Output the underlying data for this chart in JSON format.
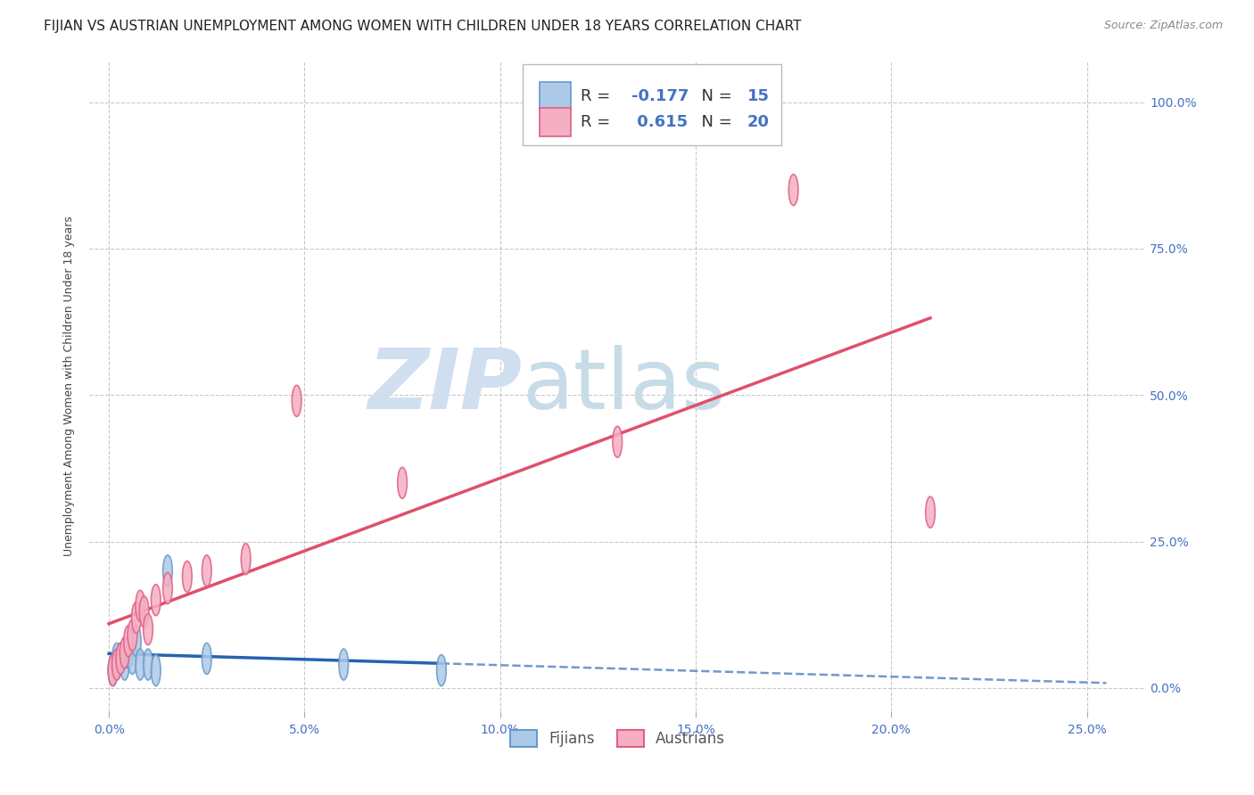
{
  "title": "FIJIAN VS AUSTRIAN UNEMPLOYMENT AMONG WOMEN WITH CHILDREN UNDER 18 YEARS CORRELATION CHART",
  "source": "Source: ZipAtlas.com",
  "ylabel": "Unemployment Among Women with Children Under 18 years",
  "fijians_x": [
    0.001,
    0.002,
    0.002,
    0.003,
    0.004,
    0.005,
    0.006,
    0.007,
    0.008,
    0.01,
    0.012,
    0.015,
    0.025,
    0.06,
    0.085
  ],
  "fijians_y": [
    0.03,
    0.04,
    0.05,
    0.05,
    0.04,
    0.06,
    0.05,
    0.08,
    0.04,
    0.04,
    0.03,
    0.2,
    0.05,
    0.04,
    0.03
  ],
  "austrians_x": [
    0.001,
    0.002,
    0.003,
    0.004,
    0.005,
    0.006,
    0.007,
    0.008,
    0.009,
    0.01,
    0.012,
    0.015,
    0.02,
    0.025,
    0.035,
    0.048,
    0.075,
    0.13,
    0.175,
    0.21
  ],
  "austrians_y": [
    0.03,
    0.04,
    0.05,
    0.06,
    0.08,
    0.09,
    0.12,
    0.14,
    0.13,
    0.1,
    0.15,
    0.17,
    0.19,
    0.2,
    0.22,
    0.49,
    0.35,
    0.42,
    0.85,
    0.3
  ],
  "fijians_color": "#adc9e8",
  "fijians_edge_color": "#6699cc",
  "austrians_color": "#f4afc4",
  "austrians_edge_color": "#e06080",
  "fijians_line_color": "#2563ae",
  "austrians_line_color": "#e0506a",
  "R_fijians": -0.177,
  "N_fijians": 15,
  "R_austrians": 0.615,
  "N_austrians": 20,
  "xlim": [
    -0.005,
    0.265
  ],
  "ylim": [
    -0.04,
    1.07
  ],
  "xticks": [
    0.0,
    0.05,
    0.1,
    0.15,
    0.2,
    0.25
  ],
  "yticks": [
    0.0,
    0.25,
    0.5,
    0.75,
    1.0
  ],
  "xticklabels": [
    "0.0%",
    "5.0%",
    "10.0%",
    "15.0%",
    "20.0%",
    "25.0%"
  ],
  "yticklabels_right": [
    "0.0%",
    "25.0%",
    "50.0%",
    "75.0%",
    "100.0%"
  ],
  "background_color": "#ffffff",
  "grid_color": "#bbbbbb",
  "watermark_zip": "ZIP",
  "watermark_atlas": "atlas",
  "watermark_color_zip": "#d0dff0",
  "watermark_color_atlas": "#c8dce8",
  "title_fontsize": 11,
  "axis_label_fontsize": 9,
  "tick_label_fontsize": 10,
  "legend_fontsize": 13
}
